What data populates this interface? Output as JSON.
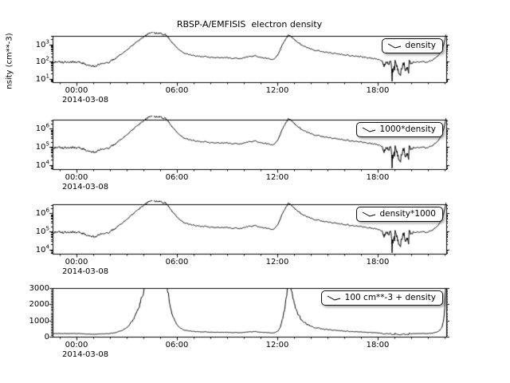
{
  "ylabel_visible": "nsity (cm**-3)",
  "colors": {
    "line": "#000000",
    "background": "#ffffff",
    "axis": "#000000"
  },
  "chart_data": {
    "type": "line",
    "title": "RBSP-A/EMFISIS  electron density",
    "date": "2014-03-08",
    "x_unit": "UT time on 2014-03-08 (hours)",
    "x_range_hours": [
      -1.45,
      22.1
    ],
    "x_major_ticks_hours": [
      0,
      6,
      12,
      18
    ],
    "x_major_tick_labels": [
      "00:00",
      "06:00",
      "12:00",
      "18:00"
    ],
    "grid": false,
    "legend_position": "top-right",
    "series": [
      {
        "name": "electron density",
        "units": "cm**-3",
        "keypoints": [
          [
            -1.45,
            90
          ],
          [
            -1.2,
            100
          ],
          [
            -0.9,
            95
          ],
          [
            -0.6,
            85
          ],
          [
            -0.3,
            96
          ],
          [
            0,
            90
          ],
          [
            0.4,
            80
          ],
          [
            0.8,
            64
          ],
          [
            1.1,
            55
          ],
          [
            1.4,
            76
          ],
          [
            1.7,
            66
          ],
          [
            2.0,
            100
          ],
          [
            2.4,
            180
          ],
          [
            2.8,
            350
          ],
          [
            3.2,
            700
          ],
          [
            3.6,
            1500
          ],
          [
            4.0,
            2800
          ],
          [
            4.3,
            4200
          ],
          [
            4.6,
            4800
          ],
          [
            5.0,
            4500
          ],
          [
            5.3,
            3600
          ],
          [
            5.5,
            2400
          ],
          [
            5.7,
            1300
          ],
          [
            5.9,
            750
          ],
          [
            6.1,
            480
          ],
          [
            6.4,
            320
          ],
          [
            6.7,
            260
          ],
          [
            7.0,
            230
          ],
          [
            7.5,
            200
          ],
          [
            8.0,
            185
          ],
          [
            8.5,
            175
          ],
          [
            9.0,
            163
          ],
          [
            9.4,
            150
          ],
          [
            9.8,
            160
          ],
          [
            10.2,
            185
          ],
          [
            10.6,
            215
          ],
          [
            11.0,
            185
          ],
          [
            11.4,
            150
          ],
          [
            11.7,
            135
          ],
          [
            12.0,
            220
          ],
          [
            12.2,
            600
          ],
          [
            12.45,
            1800
          ],
          [
            12.65,
            3400
          ],
          [
            12.85,
            2900
          ],
          [
            13.1,
            1600
          ],
          [
            13.4,
            1000
          ],
          [
            13.8,
            650
          ],
          [
            14.2,
            480
          ],
          [
            14.7,
            380
          ],
          [
            15.2,
            310
          ],
          [
            15.7,
            270
          ],
          [
            16.2,
            235
          ],
          [
            16.7,
            205
          ],
          [
            17.2,
            180
          ],
          [
            17.7,
            155
          ],
          [
            18.0,
            140
          ],
          [
            18.25,
            115
          ],
          [
            18.5,
            55
          ],
          [
            18.7,
            140
          ],
          [
            18.9,
            25
          ],
          [
            19.1,
            95
          ],
          [
            19.3,
            12
          ],
          [
            19.5,
            90
          ],
          [
            19.7,
            35
          ],
          [
            19.9,
            105
          ],
          [
            20.2,
            85
          ],
          [
            20.5,
            100
          ],
          [
            20.9,
            95
          ],
          [
            21.3,
            125
          ],
          [
            21.6,
            220
          ],
          [
            21.85,
            500
          ],
          [
            22.0,
            1400
          ],
          [
            22.05,
            2800
          ],
          [
            22.1,
            4200
          ]
        ]
      }
    ],
    "panels": [
      {
        "legend": "density",
        "yscale": "log",
        "ylog10_range": [
          0.8,
          3.5
        ],
        "ytick_values": [
          10,
          100,
          1000
        ],
        "ytick_labels": [
          "10^1",
          "10^2",
          "10^3"
        ],
        "multiply": 1,
        "offset": 0,
        "transform": "y = density"
      },
      {
        "legend": "1000*density",
        "yscale": "log",
        "ylog10_range": [
          3.8,
          6.5
        ],
        "ytick_values": [
          10000,
          100000,
          1000000
        ],
        "ytick_labels": [
          "10^4",
          "10^5",
          "10^6"
        ],
        "multiply": 1000,
        "offset": 0,
        "transform": "y = 1000*density"
      },
      {
        "legend": "density*1000",
        "yscale": "log",
        "ylog10_range": [
          3.8,
          6.5
        ],
        "ytick_values": [
          10000,
          100000,
          1000000
        ],
        "ytick_labels": [
          "10^4",
          "10^5",
          "10^6"
        ],
        "multiply": 1000,
        "offset": 0,
        "transform": "y = density*1000"
      },
      {
        "legend": "100 cm**-3 + density",
        "yscale": "linear",
        "y_range": [
          0,
          3000
        ],
        "ytick_values": [
          0,
          1000,
          2000,
          3000
        ],
        "ytick_labels": [
          "0",
          "1000",
          "2000",
          "3000"
        ],
        "multiply": 1,
        "offset": 100,
        "transform": "y = 100 + density"
      }
    ]
  }
}
